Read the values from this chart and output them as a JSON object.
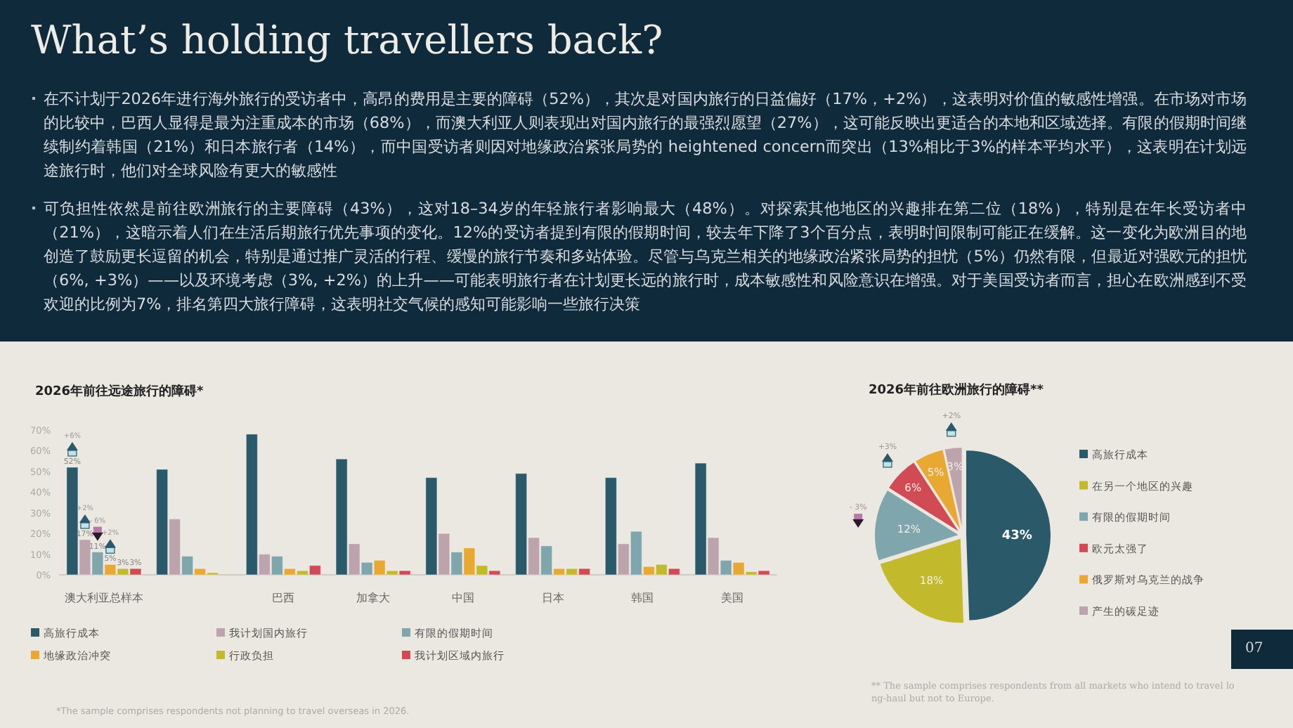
{
  "chart_data": [
    {
      "type": "other",
      "title": "What’s holding travellers back?",
      "annotations": [
        "在不计划于2026年进行海外旅行的受访者中，高昂的费用是主要的障碍（52%），其次是对国内旅行的日益偏好（17%，+2%），这表明对价值的敏感性增强。在市场对市场的比较中，巴西人显得是最为注重成本的市场（68%），而澳大利亚人则表现出对国内旅行的最强烈愿望（27%），这可能反映出更适合的本地和区域选择。有限的假期时间继续制约着韩国（21%）和日本旅行者（14%），而中国受访者则因对地缘政治紧张局势的 heightened concern而突出（13%相比于3%的样本平均水平），这表明在计划远途旅行时，他们对全球风险有更大的敏感性",
        "可负担性依然是前往欧洲旅行的主要障碍（43%），这对18–34岁的年轻旅行者影响最大（48%）。对探索其他地区的兴趣排在第二位（18%），特别是在年长受访者中（21%），这暗示着人们在生活后期旅行优先事项的变化。12%的受访者提到有限的假期时间，较去年下降了3个百分点，表明时间限制可能正在缓解。这一变化为欧洲目的地创造了鼓励更长逗留的机会，特别是通过推广灵活的行程、缓慢的旅行节奏和多站体验。尽管与乌克兰相关的地缘政治紧张局势的担忧（5%）仍然有限，但最近对强欧元的担忧（6%, +3%）——以及环境考虑（3%, +2%）的上升——可能表明旅行者在计划更长远的旅行时，成本敏感性和风险意识在增强。对于美国受访者而言，担心在欧洲感到不受欢迎的比例为7%，排名第四大旅行障碍，这表明社交气候的感知可能影响一些旅行决策",
        "07"
      ]
    },
    {
      "type": "bar",
      "title": "2026年前往远途旅行的障碍*",
      "categories": [
        "澳大利亚总样本",
        null,
        "巴西",
        "加拿大",
        "中国",
        "日本",
        "韩国",
        "美国"
      ],
      "series": [
        {
          "name": "高旅行成本",
          "color": "#2a5a6a",
          "values": [
            52,
            51,
            68,
            56,
            47,
            49,
            47,
            54
          ],
          "value_labels": [
            "52%",
            null,
            null,
            null,
            null,
            null,
            null,
            null
          ]
        },
        {
          "name": "我计划国内旅行",
          "color": "#bda3ab",
          "values": [
            17,
            27,
            10,
            15,
            20,
            18,
            15,
            18
          ],
          "value_labels": [
            "17%",
            null,
            null,
            null,
            null,
            null,
            null,
            null
          ]
        },
        {
          "name": "有限的假期时间",
          "color": "#7fa5ad",
          "values": [
            11,
            9,
            9,
            6,
            11,
            14,
            21,
            7
          ],
          "value_labels": [
            "11%",
            null,
            null,
            null,
            null,
            null,
            null,
            null
          ]
        },
        {
          "name": "地缘政治冲突",
          "color": "#e8a832",
          "values": [
            5,
            3,
            3,
            7,
            13,
            3,
            4,
            6
          ],
          "value_labels": [
            "5%",
            null,
            null,
            null,
            null,
            null,
            null,
            null
          ]
        },
        {
          "name": "行政负担",
          "color": "#c2b92d",
          "values": [
            3,
            1,
            2,
            2,
            4.5,
            3,
            5,
            1.5
          ],
          "value_labels": [
            "3%",
            null,
            null,
            null,
            null,
            null,
            null,
            null
          ]
        },
        {
          "name": "我计划区域内旅行",
          "color": "#d14b55",
          "values": [
            3,
            0,
            4.5,
            2,
            2,
            3,
            3,
            2
          ],
          "value_labels": [
            "3%",
            null,
            null,
            null,
            null,
            null,
            null,
            null
          ]
        }
      ],
      "ylim": [
        0,
        70
      ],
      "yticks": [
        {
          "value": 0,
          "label": "0%"
        },
        {
          "value": 10,
          "label": "10%"
        },
        {
          "value": 20,
          "label": "20%"
        },
        {
          "value": 30,
          "label": "30%"
        },
        {
          "value": 40,
          "label": "40%"
        },
        {
          "value": 50,
          "label": "50%"
        },
        {
          "value": 60,
          "label": "60%"
        },
        {
          "value": 70,
          "label": "70%"
        }
      ],
      "legend": "bottom",
      "grid": false,
      "annotations": [
        "+6%",
        "+2%",
        "- 6%",
        "+2%",
        "*The sample comprises respondents not planning to travel overseas in 2026."
      ]
    },
    {
      "type": "pie",
      "title": "2026年前往欧洲旅行的障碍**",
      "categories": [
        "高旅行成本",
        "在另一个地区的兴趣",
        "有限的假期时间",
        "欧元太强了",
        "俄罗斯对乌克兰的战争",
        "产生的碳足迹"
      ],
      "values": [
        43,
        18,
        12,
        6,
        5,
        3
      ],
      "colors": [
        "#2a5a6a",
        "#c2b92d",
        "#7fa5ad",
        "#d14b55",
        "#e8a832",
        "#bda3ab"
      ],
      "value_labels": [
        "43%",
        "18%",
        "12%",
        "6%",
        "5%",
        "3%"
      ],
      "legend": "right",
      "annotations": [
        "+2%",
        "+3%",
        "- 3%",
        "** The sample comprises respondents from all markets who intend to travel long-haul but not to Europe."
      ]
    }
  ]
}
